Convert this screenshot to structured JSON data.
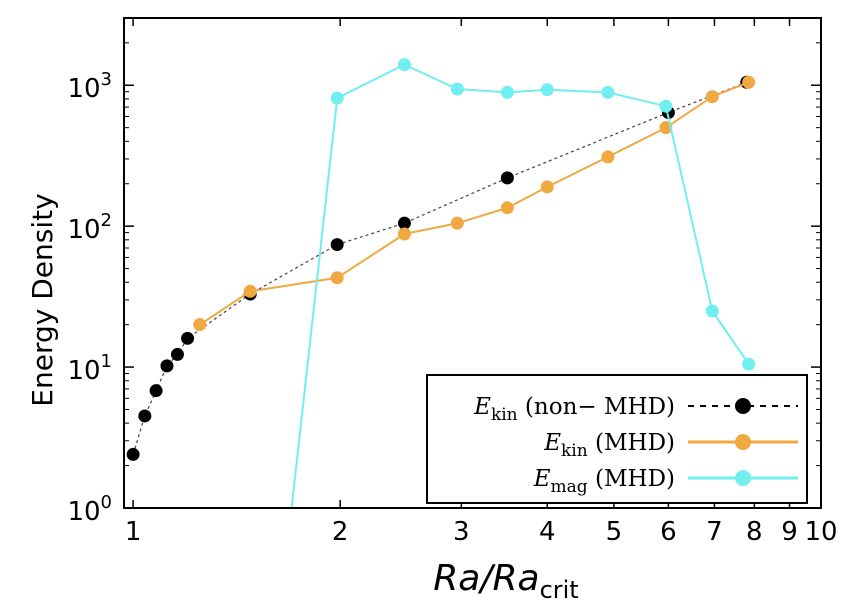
{
  "chart_data": {
    "type": "line",
    "xlabel": "Ra/Ra",
    "xlabel_sub": "crit",
    "ylabel": "Energy Density",
    "xscale": "log",
    "yscale": "log",
    "xlim": [
      0.97,
      10
    ],
    "ylim": [
      1,
      3000
    ],
    "x_ticks": [
      1,
      2,
      3,
      4,
      5,
      6,
      7,
      8,
      9,
      10
    ],
    "x_tick_labels": [
      "1",
      "2",
      "3",
      "4",
      "5",
      "6",
      "7",
      "8",
      "9",
      "10"
    ],
    "y_ticks": [
      1,
      10,
      100,
      1000
    ],
    "y_tick_bases": [
      "10",
      "10",
      "10",
      "10"
    ],
    "y_tick_exps": [
      "0",
      "1",
      "2",
      "3"
    ],
    "grid": false,
    "legend_position": "bottom-right",
    "series": [
      {
        "name_main": "E",
        "name_sub": "kin",
        "name_rest": " (non− MHD)",
        "color": "#000000",
        "line_style": "dotted",
        "x": [
          1.0,
          1.04,
          1.08,
          1.12,
          1.16,
          1.2,
          1.48,
          1.98,
          2.48,
          3.5,
          6.0,
          7.8
        ],
        "y": [
          2.4,
          4.5,
          6.8,
          10.2,
          12.3,
          16,
          33,
          74,
          105,
          220,
          640,
          1050
        ]
      },
      {
        "name_main": "E",
        "name_sub": "kin",
        "name_rest": " (MHD)",
        "color": "#f0a840",
        "line_style": "solid",
        "x": [
          1.25,
          1.48,
          1.98,
          2.48,
          2.96,
          3.5,
          4.0,
          4.9,
          5.95,
          6.95,
          7.85
        ],
        "y": [
          20,
          34.5,
          43,
          88,
          105,
          135,
          190,
          310,
          500,
          830,
          1050
        ]
      },
      {
        "name_main": "E",
        "name_sub": "mag",
        "name_rest": " (MHD)",
        "color": "#70eef0",
        "line_style": "solid",
        "line_from": [
          1.7,
          1
        ],
        "x": [
          1.98,
          2.48,
          2.96,
          3.5,
          4.0,
          4.9,
          5.95,
          6.95,
          7.85
        ],
        "y": [
          810,
          1400,
          940,
          890,
          930,
          890,
          710,
          25,
          10.5
        ]
      }
    ]
  }
}
